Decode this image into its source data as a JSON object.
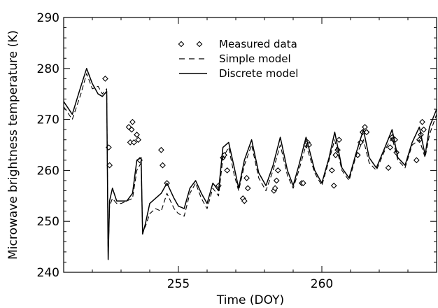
{
  "chart_data": {
    "type": "line",
    "title": "",
    "xlabel": "Time (DOY)",
    "ylabel": "Microwave brightness temperature (K)",
    "xlim": [
      251,
      264
    ],
    "ylim": [
      240,
      290
    ],
    "x_ticks": [
      255,
      260
    ],
    "x_tick_labels": [
      "255",
      "260"
    ],
    "y_ticks": [
      240,
      250,
      260,
      270,
      280,
      290
    ],
    "y_tick_labels": [
      "240",
      "250",
      "260",
      "270",
      "280",
      "290"
    ],
    "grid": false,
    "legend": {
      "position": "top-center",
      "entries": [
        "Measured data",
        "Simple model",
        "Discrete model"
      ]
    },
    "series": [
      {
        "name": "Measured data",
        "style": "diamond-markers",
        "x": [
          252.45,
          252.57,
          252.6,
          253.27,
          253.32,
          253.37,
          253.4,
          253.45,
          253.55,
          253.6,
          253.65,
          254.4,
          254.45,
          254.6,
          256.4,
          256.55,
          256.6,
          256.7,
          257.25,
          257.3,
          257.38,
          257.42,
          258.33,
          258.37,
          258.42,
          258.47,
          259.3,
          259.35,
          259.45,
          259.5,
          259.55,
          260.35,
          260.42,
          260.48,
          260.55,
          260.6,
          261.25,
          261.35,
          261.42,
          261.5,
          261.56,
          262.32,
          262.38,
          262.45,
          262.5,
          262.55,
          262.6,
          263.3,
          263.4,
          263.45,
          263.5,
          263.55
        ],
        "y": [
          278,
          264.5,
          261,
          268.5,
          265.5,
          268,
          269.5,
          265.5,
          267,
          266,
          262,
          264,
          261,
          257.5,
          257,
          262.5,
          263,
          260,
          254.5,
          254,
          258.5,
          256.5,
          256,
          256.5,
          258,
          260,
          257.5,
          257.5,
          265,
          265.5,
          265,
          260,
          257,
          263,
          264,
          266,
          263,
          265.5,
          267.5,
          268.5,
          267.5,
          260.5,
          264.5,
          266.5,
          266,
          266,
          263.5,
          262,
          266,
          267,
          269.5,
          268
        ]
      },
      {
        "name": "Simple model",
        "style": "dashed",
        "x": [
          251.0,
          251.3,
          251.6,
          251.8,
          252.0,
          252.2,
          252.35,
          252.5,
          252.55,
          252.6,
          252.7,
          252.85,
          253.0,
          253.2,
          253.4,
          253.55,
          253.7,
          253.75,
          253.85,
          254.0,
          254.2,
          254.4,
          254.6,
          254.85,
          255.0,
          255.2,
          255.4,
          255.6,
          255.8,
          256.0,
          256.2,
          256.4,
          256.55,
          256.75,
          256.95,
          257.1,
          257.3,
          257.55,
          257.8,
          258.05,
          258.3,
          258.55,
          258.8,
          259.0,
          259.2,
          259.45,
          259.75,
          260.0,
          260.25,
          260.45,
          260.7,
          260.95,
          261.2,
          261.45,
          261.65,
          261.9,
          262.2,
          262.45,
          262.65,
          262.9,
          263.15,
          263.4,
          263.6,
          263.75,
          264.0
        ],
        "y": [
          272.5,
          270.0,
          275.0,
          279.0,
          276.0,
          276.5,
          275.0,
          276.0,
          243.0,
          253.0,
          254.5,
          253.5,
          253.5,
          254.0,
          254.5,
          260.0,
          261.5,
          248.0,
          249.0,
          251.5,
          252.5,
          252.0,
          255.5,
          252.5,
          251.5,
          251.0,
          255.5,
          257.5,
          254.5,
          252.5,
          256.5,
          255.0,
          262.5,
          264.5,
          259.0,
          256.0,
          261.0,
          265.0,
          258.5,
          256.0,
          260.0,
          265.0,
          259.0,
          256.5,
          260.0,
          265.0,
          259.5,
          257.0,
          262.0,
          266.0,
          260.0,
          258.0,
          263.0,
          266.0,
          261.5,
          260.0,
          264.0,
          266.5,
          262.0,
          260.5,
          265.0,
          266.0,
          262.5,
          267.0,
          271.0
        ]
      },
      {
        "name": "Discrete model",
        "style": "solid",
        "x": [
          251.0,
          251.3,
          251.6,
          251.8,
          252.0,
          252.2,
          252.35,
          252.5,
          252.55,
          252.6,
          252.7,
          252.85,
          253.0,
          253.2,
          253.4,
          253.55,
          253.7,
          253.75,
          253.85,
          254.0,
          254.2,
          254.4,
          254.6,
          254.85,
          255.0,
          255.2,
          255.4,
          255.6,
          255.8,
          256.0,
          256.2,
          256.4,
          256.55,
          256.75,
          256.95,
          257.1,
          257.3,
          257.55,
          257.8,
          258.05,
          258.3,
          258.55,
          258.8,
          259.0,
          259.2,
          259.45,
          259.75,
          260.0,
          260.25,
          260.45,
          260.7,
          260.95,
          261.2,
          261.45,
          261.65,
          261.9,
          262.2,
          262.45,
          262.65,
          262.9,
          263.15,
          263.4,
          263.6,
          263.75,
          264.0
        ],
        "y": [
          273.5,
          271.0,
          276.5,
          280.0,
          277.0,
          275.0,
          274.5,
          275.5,
          242.5,
          254.0,
          256.5,
          254.0,
          254.0,
          254.0,
          255.5,
          262.0,
          262.5,
          247.5,
          249.5,
          253.5,
          254.5,
          255.5,
          257.5,
          254.5,
          253.0,
          252.5,
          256.5,
          258.0,
          255.5,
          253.5,
          257.5,
          256.0,
          264.5,
          265.5,
          260.5,
          256.5,
          262.0,
          266.0,
          259.5,
          257.0,
          261.0,
          266.5,
          260.0,
          257.0,
          261.0,
          266.5,
          260.0,
          257.5,
          262.5,
          267.5,
          260.5,
          258.5,
          263.5,
          268.0,
          262.5,
          260.5,
          264.5,
          268.0,
          262.5,
          261.0,
          265.5,
          268.5,
          263.0,
          268.5,
          272.0
        ]
      }
    ]
  }
}
